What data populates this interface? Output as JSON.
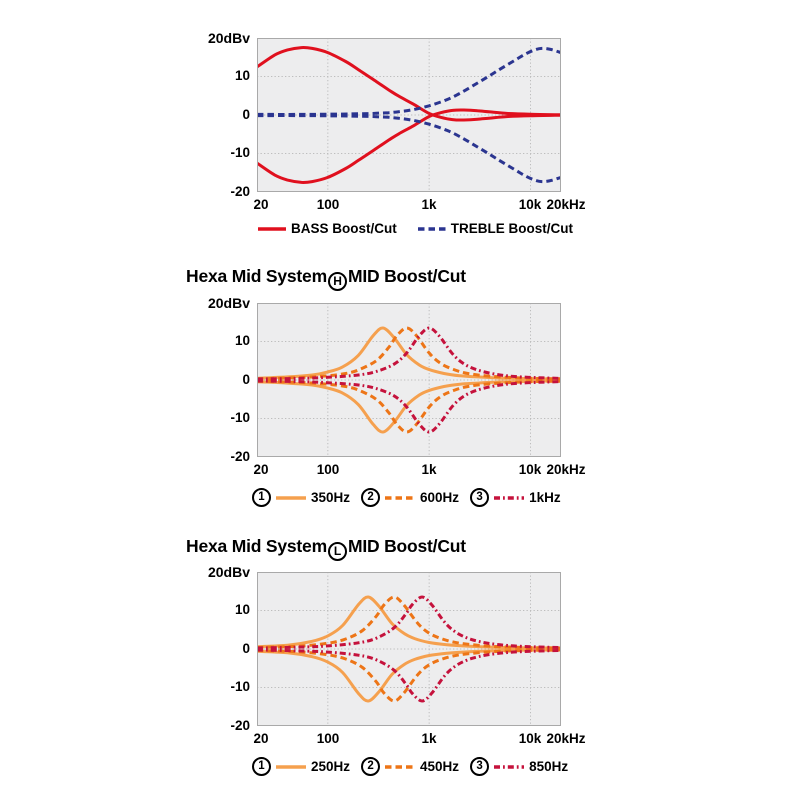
{
  "page": {
    "background": "#ffffff"
  },
  "chart_data": [
    {
      "type": "line",
      "name": "tone-control-bass-treble",
      "title": "",
      "x_axis": {
        "scale": "log",
        "unit": "Hz",
        "min": 20,
        "max": 20000,
        "tick_labels": [
          "20",
          "100",
          "1k",
          "10k",
          "20kHz"
        ],
        "tick_values": [
          20,
          100,
          1000,
          10000,
          20000
        ]
      },
      "y_axis": {
        "unit_label": "20dBv",
        "min": -20,
        "max": 20,
        "tick_labels": [
          "10",
          "0",
          "-10",
          "-20"
        ],
        "tick_values": [
          10,
          0,
          -10,
          -20
        ]
      },
      "grid": {
        "h_values": [
          10,
          0,
          -10
        ],
        "v_values": [
          100,
          1000,
          10000
        ],
        "style": "dotted"
      },
      "series": [
        {
          "name": "BASS Boost/Cut",
          "color": "#E0101E",
          "dash": "solid",
          "mirrored": true,
          "points": [
            [
              20,
              12.5
            ],
            [
              30,
              15.6
            ],
            [
              40,
              16.9
            ],
            [
              55,
              17.5
            ],
            [
              70,
              17.3
            ],
            [
              100,
              16.2
            ],
            [
              150,
              13.9
            ],
            [
              200,
              11.8
            ],
            [
              300,
              8.7
            ],
            [
              400,
              6.5
            ],
            [
              500,
              4.9
            ],
            [
              700,
              2.8
            ],
            [
              1000,
              0.4
            ],
            [
              1300,
              -0.6
            ],
            [
              1700,
              -1.2
            ],
            [
              2200,
              -1.3
            ],
            [
              3000,
              -1.1
            ],
            [
              4000,
              -0.8
            ],
            [
              6000,
              -0.4
            ],
            [
              10000,
              -0.2
            ],
            [
              20000,
              -0.05
            ]
          ]
        },
        {
          "name": "TREBLE Boost/Cut",
          "color": "#2B3590",
          "dash": "dashed",
          "mirrored": true,
          "points": [
            [
              20,
              0.15
            ],
            [
              50,
              0.15
            ],
            [
              100,
              0.2
            ],
            [
              200,
              0.3
            ],
            [
              300,
              0.45
            ],
            [
              400,
              0.6
            ],
            [
              500,
              0.85
            ],
            [
              700,
              1.4
            ],
            [
              1000,
              2.4
            ],
            [
              1500,
              4.0
            ],
            [
              2000,
              5.6
            ],
            [
              3000,
              8.3
            ],
            [
              4000,
              10.3
            ],
            [
              5000,
              11.9
            ],
            [
              7000,
              14.2
            ],
            [
              9000,
              15.9
            ],
            [
              11000,
              16.9
            ],
            [
              13000,
              17.3
            ],
            [
              16000,
              17.0
            ],
            [
              20000,
              16.2
            ]
          ]
        }
      ],
      "legend": [
        {
          "label": "BASS Boost/Cut",
          "series": 0
        },
        {
          "label": "TREBLE Boost/Cut",
          "series": 1
        }
      ]
    },
    {
      "type": "line",
      "name": "hexa-mid-system-h",
      "title_parts": {
        "prefix": "Hexa Mid System",
        "circled": "H",
        "suffix": "MID Boost/Cut"
      },
      "x_axis": {
        "scale": "log",
        "unit": "Hz",
        "min": 20,
        "max": 20000,
        "tick_labels": [
          "20",
          "100",
          "1k",
          "10k",
          "20kHz"
        ],
        "tick_values": [
          20,
          100,
          1000,
          10000,
          20000
        ]
      },
      "y_axis": {
        "unit_label": "20dBv",
        "min": -20,
        "max": 20,
        "tick_labels": [
          "10",
          "0",
          "-10",
          "-20"
        ],
        "tick_values": [
          10,
          0,
          -10,
          -20
        ]
      },
      "grid": {
        "h_values": [
          10,
          0,
          -10
        ],
        "v_values": [
          100,
          1000,
          10000
        ],
        "style": "dotted"
      },
      "series": [
        {
          "name": "350Hz",
          "center_hz": 350,
          "peak_db": 13.5,
          "color": "#F5A04E",
          "dash": "solid",
          "mirrored": true,
          "points": [
            [
              20,
              0.45
            ],
            [
              40,
              0.8
            ],
            [
              70,
              1.3
            ],
            [
              100,
              2.1
            ],
            [
              140,
              3.4
            ],
            [
              200,
              6.4
            ],
            [
              280,
              11.5
            ],
            [
              350,
              13.5
            ],
            [
              450,
              11.0
            ],
            [
              600,
              6.6
            ],
            [
              800,
              3.9
            ],
            [
              1000,
              2.7
            ],
            [
              1400,
              1.7
            ],
            [
              2000,
              1.1
            ],
            [
              3000,
              0.8
            ],
            [
              5000,
              0.5
            ],
            [
              8000,
              0.4
            ],
            [
              12000,
              0.3
            ],
            [
              20000,
              0.2
            ]
          ]
        },
        {
          "name": "600Hz",
          "center_hz": 600,
          "peak_db": 13.5,
          "color": "#ED7517",
          "dash": "dashed",
          "mirrored": true,
          "points": [
            [
              20,
              0.3
            ],
            [
              50,
              0.6
            ],
            [
              100,
              1.1
            ],
            [
              150,
              1.7
            ],
            [
              200,
              2.6
            ],
            [
              300,
              5.0
            ],
            [
              400,
              8.5
            ],
            [
              480,
              11.5
            ],
            [
              600,
              13.5
            ],
            [
              750,
              11.5
            ],
            [
              1000,
              7.0
            ],
            [
              1300,
              4.3
            ],
            [
              1800,
              2.6
            ],
            [
              2500,
              1.6
            ],
            [
              4000,
              1.0
            ],
            [
              7000,
              0.6
            ],
            [
              12000,
              0.4
            ],
            [
              20000,
              0.3
            ]
          ]
        },
        {
          "name": "1kHz",
          "center_hz": 1000,
          "peak_db": 13.5,
          "color": "#C5123C",
          "dash": "dashdot",
          "mirrored": true,
          "points": [
            [
              20,
              0.25
            ],
            [
              50,
              0.4
            ],
            [
              100,
              0.7
            ],
            [
              200,
              1.3
            ],
            [
              300,
              2.2
            ],
            [
              450,
              4.1
            ],
            [
              600,
              7.0
            ],
            [
              800,
              11.5
            ],
            [
              1000,
              13.5
            ],
            [
              1250,
              11.5
            ],
            [
              1700,
              6.8
            ],
            [
              2200,
              4.2
            ],
            [
              3000,
              2.6
            ],
            [
              4500,
              1.5
            ],
            [
              7000,
              0.9
            ],
            [
              12000,
              0.6
            ],
            [
              20000,
              0.4
            ]
          ]
        }
      ],
      "legend": [
        {
          "num": "1",
          "label": "350Hz",
          "series": 0
        },
        {
          "num": "2",
          "label": "600Hz",
          "series": 1
        },
        {
          "num": "3",
          "label": "1kHz",
          "series": 2
        }
      ]
    },
    {
      "type": "line",
      "name": "hexa-mid-system-l",
      "title_parts": {
        "prefix": "Hexa Mid System",
        "circled": "L",
        "suffix": "MID Boost/Cut"
      },
      "x_axis": {
        "scale": "log",
        "unit": "Hz",
        "min": 20,
        "max": 20000,
        "tick_labels": [
          "20",
          "100",
          "1k",
          "10k",
          "20kHz"
        ],
        "tick_values": [
          20,
          100,
          1000,
          10000,
          20000
        ]
      },
      "y_axis": {
        "unit_label": "20dBv",
        "min": -20,
        "max": 20,
        "tick_labels": [
          "10",
          "0",
          "-10",
          "-20"
        ],
        "tick_values": [
          10,
          0,
          -10,
          -20
        ]
      },
      "grid": {
        "h_values": [
          10,
          0,
          -10
        ],
        "v_values": [
          100,
          1000,
          10000
        ],
        "style": "dotted"
      },
      "series": [
        {
          "name": "250Hz",
          "center_hz": 250,
          "peak_db": 13.5,
          "color": "#F5A04E",
          "dash": "solid",
          "mirrored": true,
          "points": [
            [
              20,
              0.6
            ],
            [
              40,
              1.0
            ],
            [
              70,
              2.0
            ],
            [
              100,
              3.4
            ],
            [
              140,
              6.1
            ],
            [
              200,
              11.5
            ],
            [
              250,
              13.5
            ],
            [
              320,
              11.1
            ],
            [
              430,
              6.6
            ],
            [
              570,
              4.0
            ],
            [
              720,
              2.7
            ],
            [
              1000,
              1.7
            ],
            [
              1500,
              1.1
            ],
            [
              2500,
              0.7
            ],
            [
              4000,
              0.5
            ],
            [
              8000,
              0.3
            ],
            [
              14000,
              0.25
            ],
            [
              20000,
              0.2
            ]
          ]
        },
        {
          "name": "450Hz",
          "center_hz": 450,
          "peak_db": 13.5,
          "color": "#ED7517",
          "dash": "dashed",
          "mirrored": true,
          "points": [
            [
              20,
              0.4
            ],
            [
              50,
              0.7
            ],
            [
              100,
              1.5
            ],
            [
              150,
              2.6
            ],
            [
              220,
              4.8
            ],
            [
              300,
              8.5
            ],
            [
              360,
              11.5
            ],
            [
              450,
              13.5
            ],
            [
              560,
              11.5
            ],
            [
              770,
              6.7
            ],
            [
              1000,
              4.1
            ],
            [
              1350,
              2.6
            ],
            [
              1900,
              1.6
            ],
            [
              3000,
              1.0
            ],
            [
              5000,
              0.6
            ],
            [
              9000,
              0.4
            ],
            [
              15000,
              0.3
            ],
            [
              20000,
              0.26
            ]
          ]
        },
        {
          "name": "850Hz",
          "center_hz": 850,
          "peak_db": 13.5,
          "color": "#C5123C",
          "dash": "dashdot",
          "mirrored": true,
          "points": [
            [
              20,
              0.26
            ],
            [
              50,
              0.46
            ],
            [
              100,
              0.8
            ],
            [
              200,
              1.6
            ],
            [
              300,
              2.8
            ],
            [
              450,
              5.5
            ],
            [
              600,
              9.4
            ],
            [
              680,
              11.5
            ],
            [
              850,
              13.5
            ],
            [
              1060,
              11.5
            ],
            [
              1450,
              6.7
            ],
            [
              1900,
              4.1
            ],
            [
              2600,
              2.5
            ],
            [
              3800,
              1.5
            ],
            [
              6000,
              0.9
            ],
            [
              10000,
              0.6
            ],
            [
              15000,
              0.45
            ],
            [
              20000,
              0.37
            ]
          ]
        }
      ],
      "legend": [
        {
          "num": "1",
          "label": "250Hz",
          "series": 0
        },
        {
          "num": "2",
          "label": "450Hz",
          "series": 1
        },
        {
          "num": "3",
          "label": "850Hz",
          "series": 2
        }
      ]
    }
  ],
  "style": {
    "plot_bg": "#EDEDEE",
    "plot_border": "#A9A9A9",
    "grid_color": "#BDBDBD",
    "text_color": "#000000"
  }
}
